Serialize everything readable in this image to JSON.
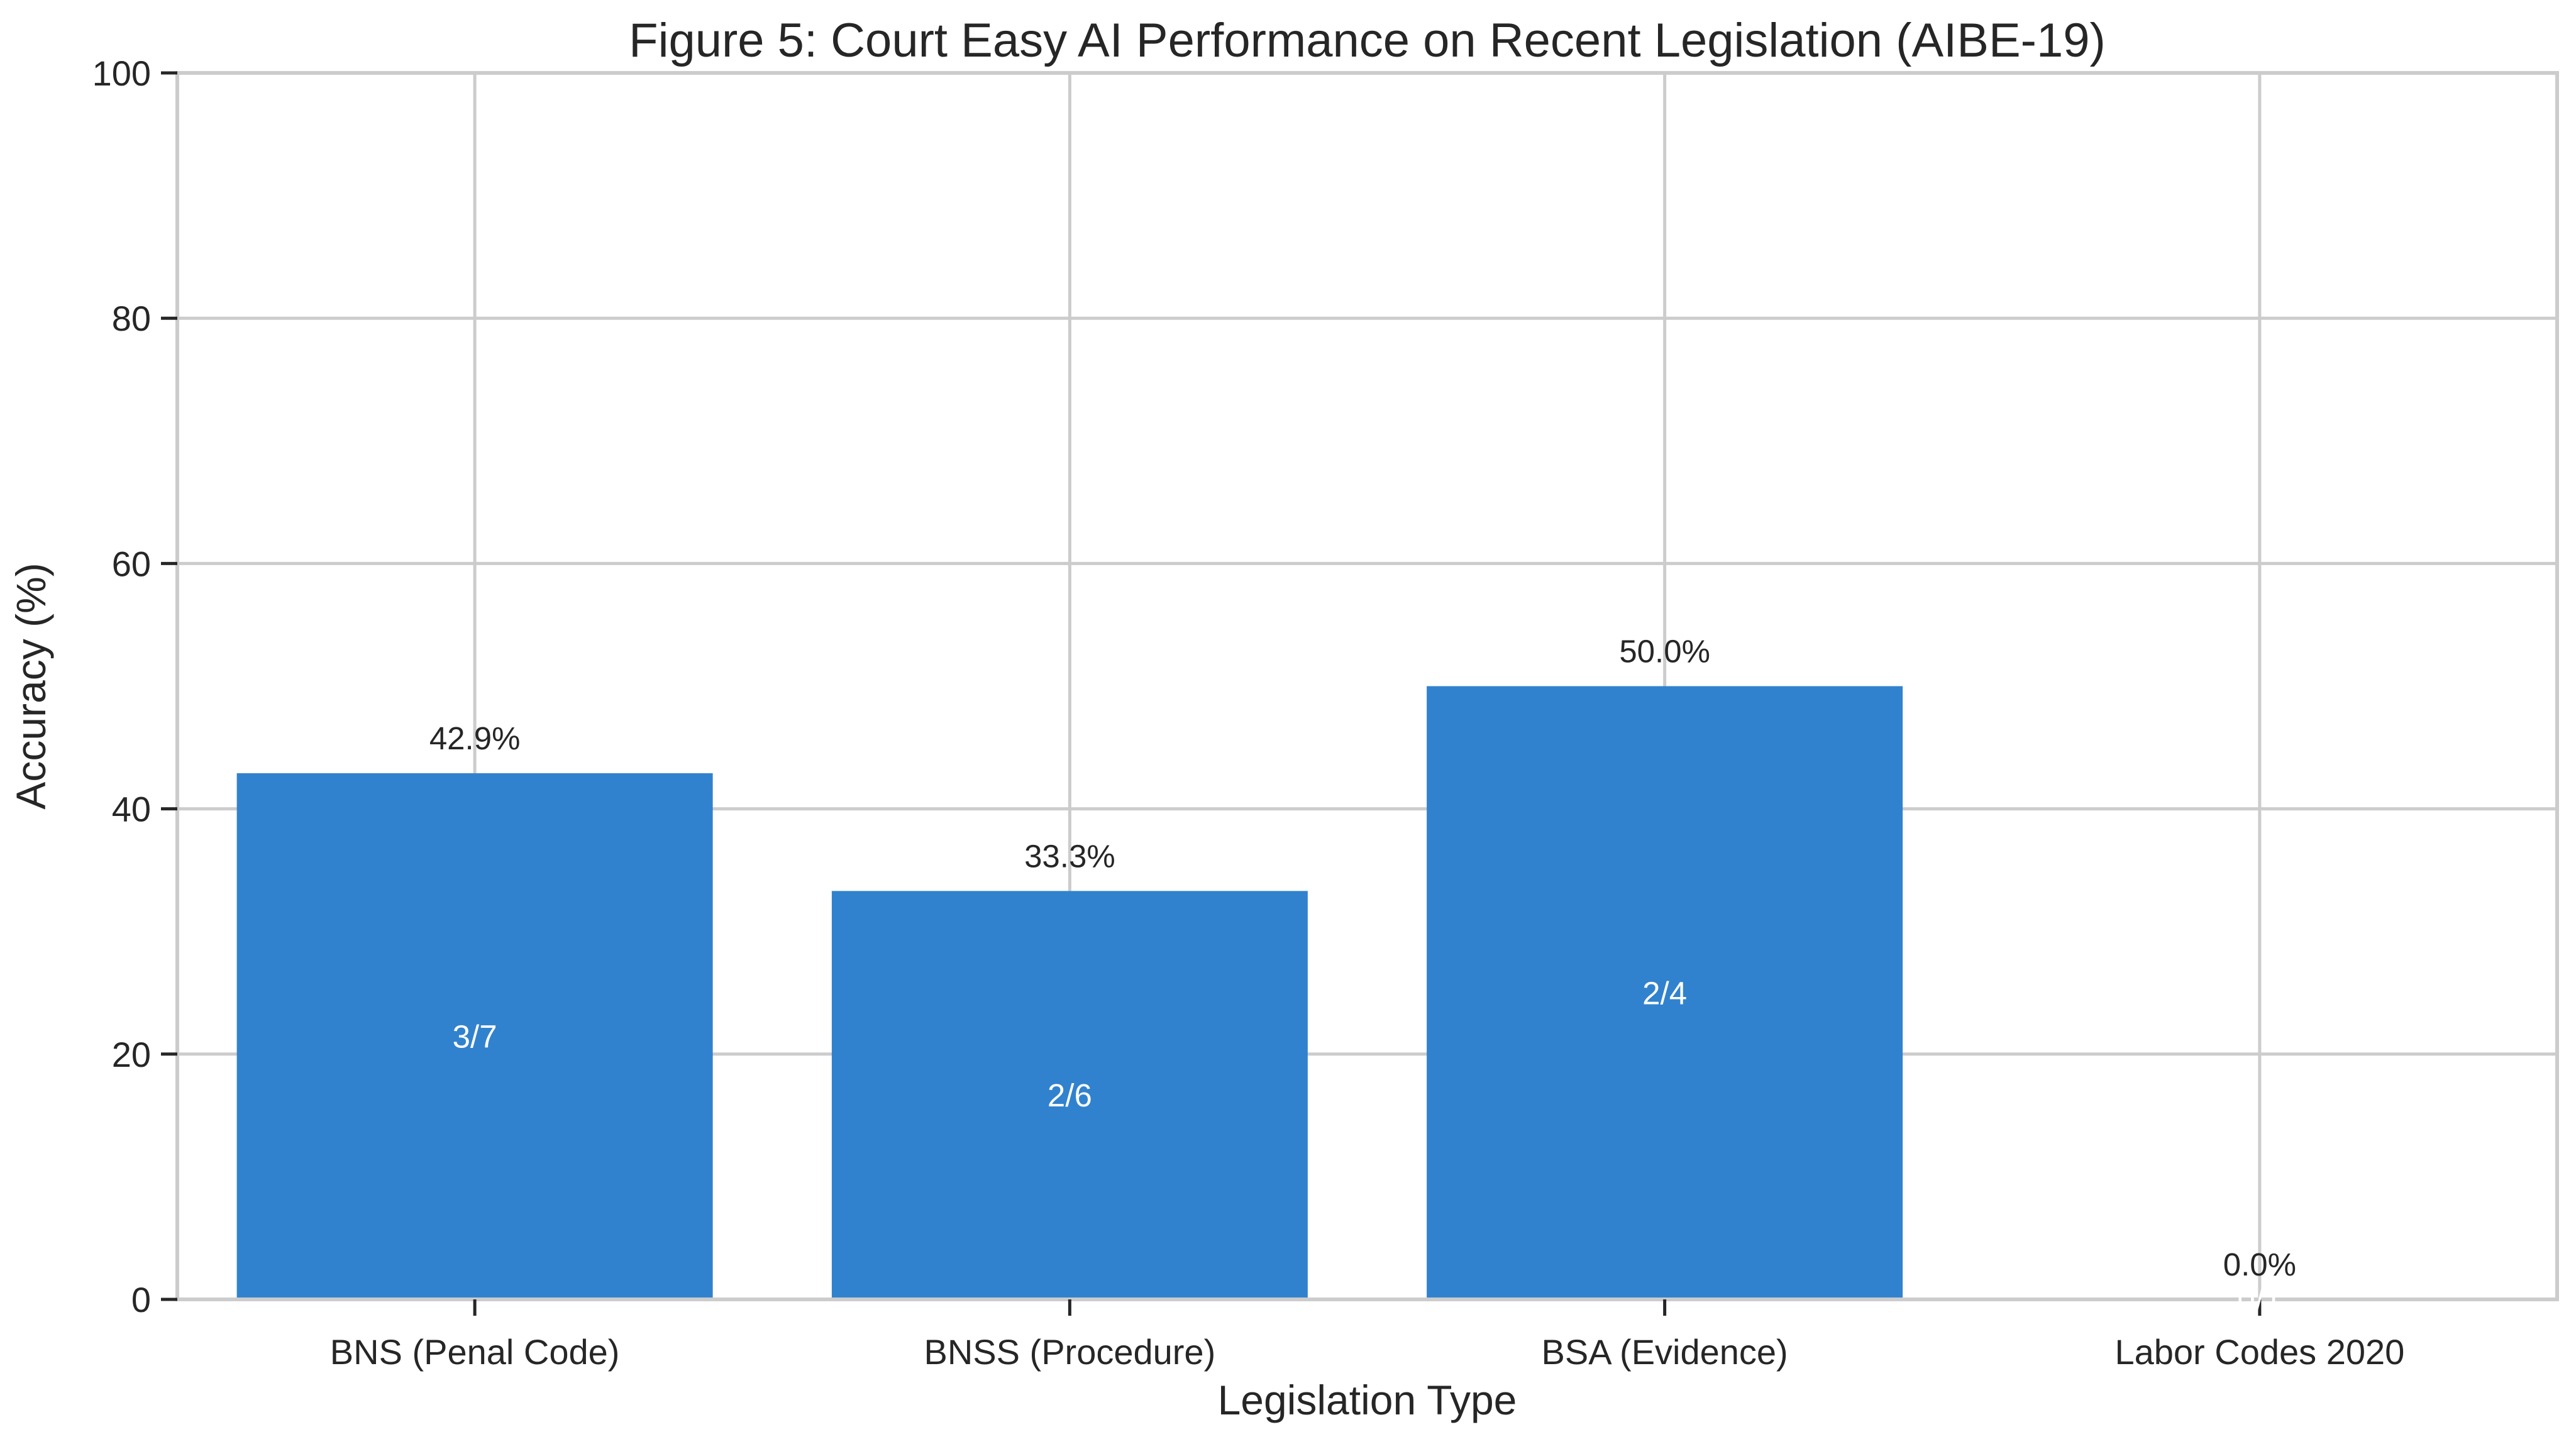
{
  "chart_data": {
    "type": "bar",
    "title": "Figure 5: Court Easy AI Performance on Recent Legislation (AIBE-19)",
    "xlabel": "Legislation Type",
    "ylabel": "Accuracy (%)",
    "categories": [
      "BNS (Penal Code)",
      "BNSS (Procedure)",
      "BSA (Evidence)",
      "Labor Codes 2020"
    ],
    "values": [
      42.9,
      33.3,
      50.0,
      0.0
    ],
    "value_labels": [
      "42.9%",
      "33.3%",
      "50.0%",
      "0.0%"
    ],
    "count_labels": [
      "3/7",
      "2/6",
      "2/4",
      "0/1"
    ],
    "ylim": [
      0,
      100
    ],
    "yticks": [
      0,
      20,
      40,
      60,
      80,
      100
    ],
    "grid": true,
    "bar_color": "#3182ce",
    "grid_color": "#cccccc",
    "axis_color": "#cccccc"
  }
}
